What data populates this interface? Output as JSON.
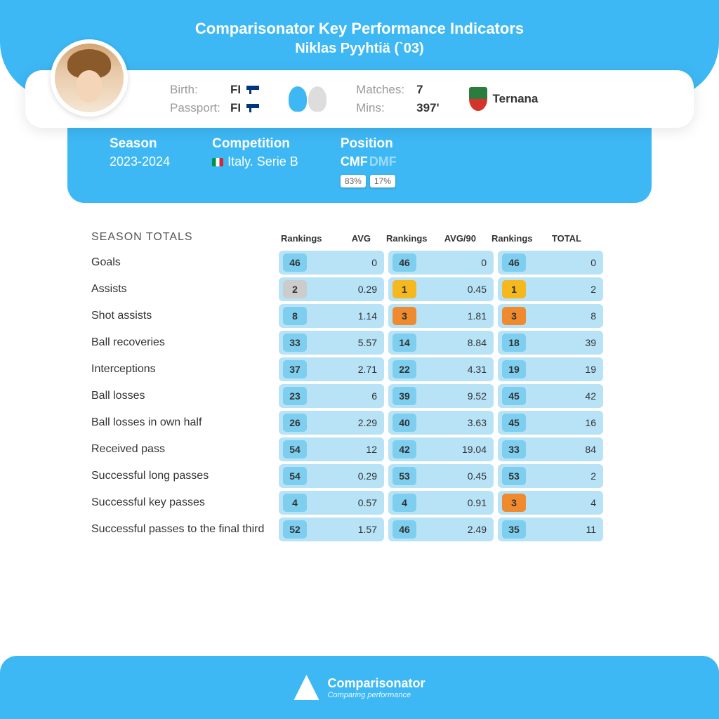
{
  "header": {
    "title": "Comparisonator Key Performance Indicators",
    "subtitle": "Niklas Pyyhtiä (`03)"
  },
  "info": {
    "birth_label": "Birth:",
    "birth_value": "FI",
    "passport_label": "Passport:",
    "passport_value": "FI",
    "matches_label": "Matches:",
    "matches_value": "7",
    "mins_label": "Mins:",
    "mins_value": "397'",
    "club": "Ternana"
  },
  "selectors": {
    "season_label": "Season",
    "season_value": "2023-2024",
    "competition_label": "Competition",
    "competition_value": "Italy. Serie B",
    "position_label": "Position",
    "pos1": "CMF",
    "pos2": "DMF",
    "pct1": "83%",
    "pct2": "17%"
  },
  "table": {
    "section_title": "SEASON TOTALS",
    "headers": {
      "rankings": "Rankings",
      "avg": "AVG",
      "avg90": "AVG/90",
      "total": "TOTAL"
    },
    "group_bg": "#b8e3f7",
    "badge_colors": {
      "default": "#7ecef0",
      "gold": "#f5b81f",
      "orange": "#f08a2e",
      "silver": "#cccccc"
    },
    "rows": [
      {
        "label": "Goals",
        "r1": "46",
        "c1": "default",
        "v1": "0",
        "r2": "46",
        "c2": "default",
        "v2": "0",
        "r3": "46",
        "c3": "default",
        "v3": "0"
      },
      {
        "label": "Assists",
        "r1": "2",
        "c1": "silver",
        "v1": "0.29",
        "r2": "1",
        "c2": "gold",
        "v2": "0.45",
        "r3": "1",
        "c3": "gold",
        "v3": "2"
      },
      {
        "label": "Shot assists",
        "r1": "8",
        "c1": "default",
        "v1": "1.14",
        "r2": "3",
        "c2": "orange",
        "v2": "1.81",
        "r3": "3",
        "c3": "orange",
        "v3": "8"
      },
      {
        "label": "Ball recoveries",
        "r1": "33",
        "c1": "default",
        "v1": "5.57",
        "r2": "14",
        "c2": "default",
        "v2": "8.84",
        "r3": "18",
        "c3": "default",
        "v3": "39"
      },
      {
        "label": "Interceptions",
        "r1": "37",
        "c1": "default",
        "v1": "2.71",
        "r2": "22",
        "c2": "default",
        "v2": "4.31",
        "r3": "19",
        "c3": "default",
        "v3": "19"
      },
      {
        "label": "Ball losses",
        "r1": "23",
        "c1": "default",
        "v1": "6",
        "r2": "39",
        "c2": "default",
        "v2": "9.52",
        "r3": "45",
        "c3": "default",
        "v3": "42"
      },
      {
        "label": "Ball losses in own half",
        "r1": "26",
        "c1": "default",
        "v1": "2.29",
        "r2": "40",
        "c2": "default",
        "v2": "3.63",
        "r3": "45",
        "c3": "default",
        "v3": "16"
      },
      {
        "label": "Received pass",
        "r1": "54",
        "c1": "default",
        "v1": "12",
        "r2": "42",
        "c2": "default",
        "v2": "19.04",
        "r3": "33",
        "c3": "default",
        "v3": "84"
      },
      {
        "label": "Successful long passes",
        "r1": "54",
        "c1": "default",
        "v1": "0.29",
        "r2": "53",
        "c2": "default",
        "v2": "0.45",
        "r3": "53",
        "c3": "default",
        "v3": "2"
      },
      {
        "label": "Successful key passes",
        "r1": "4",
        "c1": "default",
        "v1": "0.57",
        "r2": "4",
        "c2": "default",
        "v2": "0.91",
        "r3": "3",
        "c3": "orange",
        "v3": "4"
      },
      {
        "label": "Successful passes to the final third",
        "r1": "52",
        "c1": "default",
        "v1": "1.57",
        "r2": "46",
        "c2": "default",
        "v2": "2.49",
        "r3": "35",
        "c3": "default",
        "v3": "11"
      }
    ]
  },
  "footer": {
    "title": "Comparisonator",
    "subtitle": "Comparing performance"
  }
}
